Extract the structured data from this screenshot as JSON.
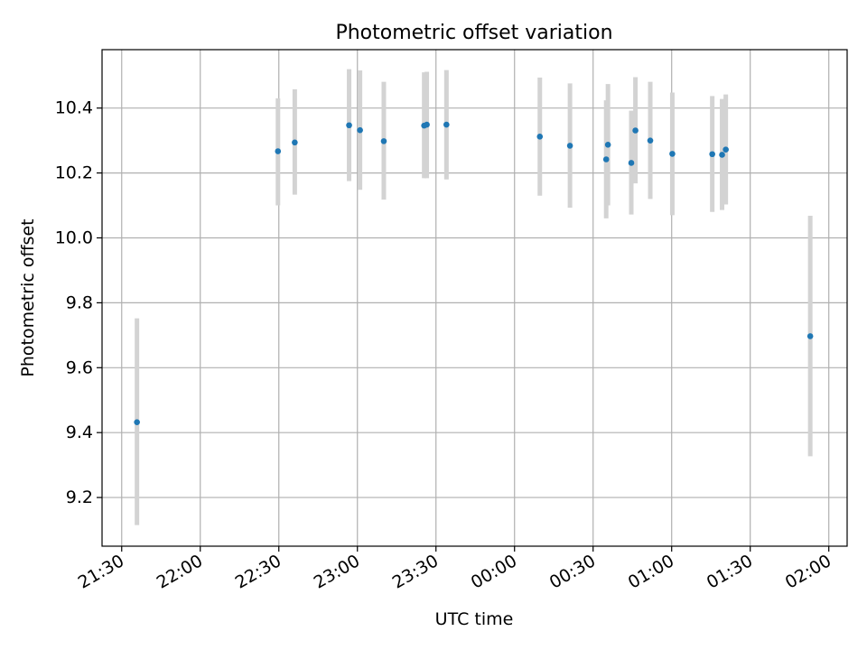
{
  "chart_data": {
    "type": "scatter",
    "title": "Photometric offset variation",
    "xlabel": "UTC time",
    "ylabel": "Photometric offset",
    "x_ticks": [
      "21:30",
      "22:00",
      "22:30",
      "23:00",
      "23:30",
      "00:00",
      "00:30",
      "01:00",
      "01:30",
      "02:00"
    ],
    "x_tick_minutes": [
      0,
      30,
      60,
      90,
      120,
      150,
      180,
      210,
      240,
      270
    ],
    "x_range_minutes": [
      -7.5,
      277
    ],
    "y_ticks": [
      "9.2",
      "9.4",
      "9.6",
      "9.8",
      "10.0",
      "10.2",
      "10.4"
    ],
    "ylim": [
      9.05,
      10.58
    ],
    "grid": true,
    "colors": {
      "point": "#1f77b4",
      "errorbar": "#d3d3d3",
      "grid": "#b0b0b0"
    },
    "series": [
      {
        "points": [
          {
            "x": "21:35:50",
            "y": 9.432,
            "lo": 9.115,
            "hi": 9.752
          },
          {
            "x": "22:29:40",
            "y": 10.267,
            "lo": 10.1,
            "hi": 10.43
          },
          {
            "x": "22:36:05",
            "y": 10.294,
            "lo": 10.133,
            "hi": 10.458
          },
          {
            "x": "22:56:50",
            "y": 10.347,
            "lo": 10.175,
            "hi": 10.52
          },
          {
            "x": "23:01:00",
            "y": 10.332,
            "lo": 10.148,
            "hi": 10.516
          },
          {
            "x": "23:10:05",
            "y": 10.298,
            "lo": 10.118,
            "hi": 10.481
          },
          {
            "x": "23:25:30",
            "y": 10.346,
            "lo": 10.184,
            "hi": 10.51
          },
          {
            "x": "23:26:30",
            "y": 10.349,
            "lo": 10.184,
            "hi": 10.512
          },
          {
            "x": "23:34:00",
            "y": 10.349,
            "lo": 10.18,
            "hi": 10.517
          },
          {
            "x": "00:09:40",
            "y": 10.312,
            "lo": 10.13,
            "hi": 10.494
          },
          {
            "x": "00:21:10",
            "y": 10.284,
            "lo": 10.093,
            "hi": 10.476
          },
          {
            "x": "00:35:00",
            "y": 10.242,
            "lo": 10.06,
            "hi": 10.424
          },
          {
            "x": "00:35:40",
            "y": 10.287,
            "lo": 10.1,
            "hi": 10.474
          },
          {
            "x": "00:44:35",
            "y": 10.231,
            "lo": 10.072,
            "hi": 10.392
          },
          {
            "x": "00:46:10",
            "y": 10.331,
            "lo": 10.168,
            "hi": 10.495
          },
          {
            "x": "00:51:50",
            "y": 10.3,
            "lo": 10.12,
            "hi": 10.481
          },
          {
            "x": "01:00:15",
            "y": 10.259,
            "lo": 10.07,
            "hi": 10.448
          },
          {
            "x": "01:15:30",
            "y": 10.258,
            "lo": 10.08,
            "hi": 10.437
          },
          {
            "x": "01:19:15",
            "y": 10.256,
            "lo": 10.086,
            "hi": 10.428
          },
          {
            "x": "01:20:40",
            "y": 10.272,
            "lo": 10.103,
            "hi": 10.442
          },
          {
            "x": "01:52:55",
            "y": 9.697,
            "lo": 9.327,
            "hi": 10.068
          }
        ]
      }
    ]
  }
}
